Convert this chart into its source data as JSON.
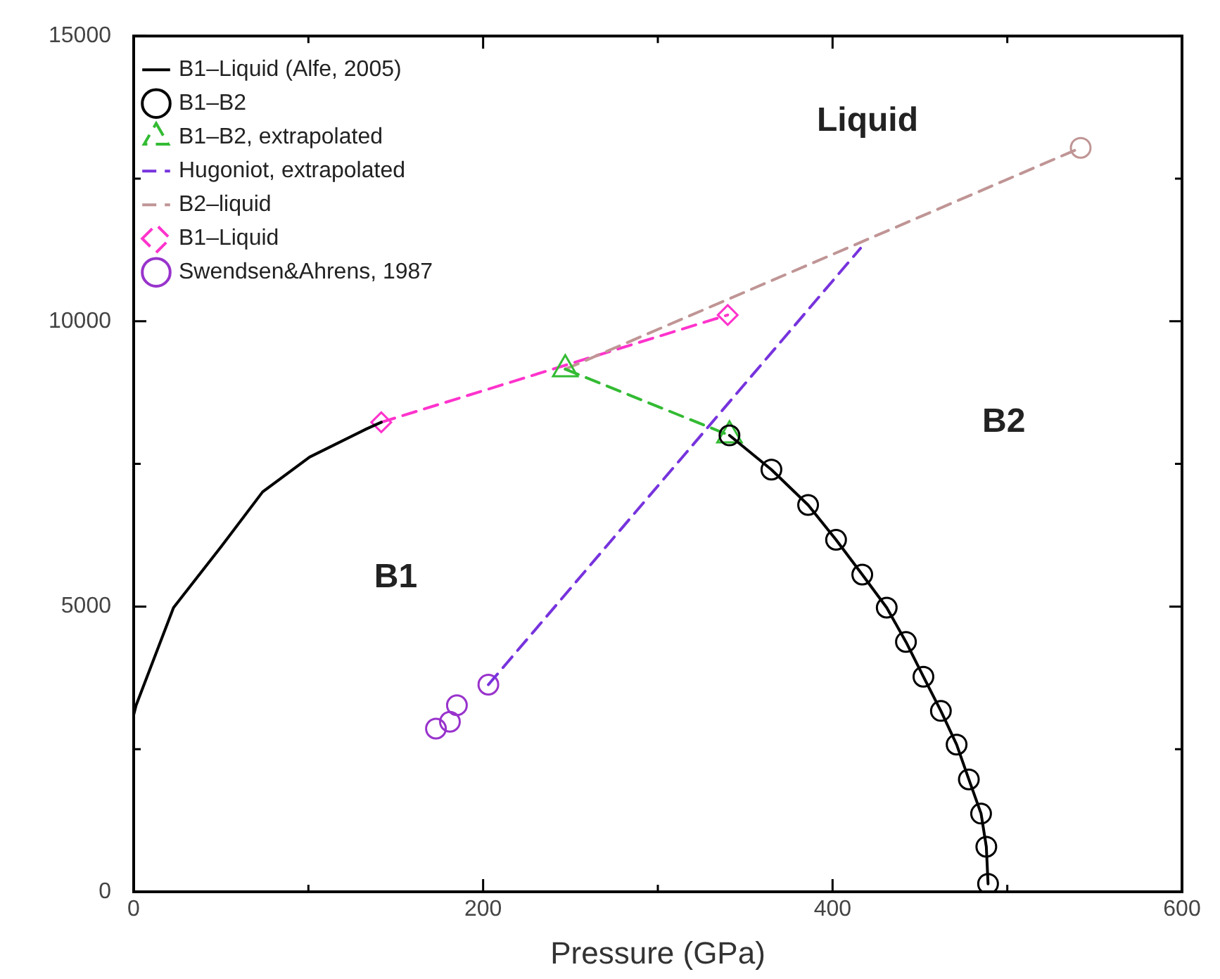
{
  "chart_data": {
    "type": "line",
    "xlabel": "Pressure (GPa)",
    "xlim": [
      0,
      600
    ],
    "xticks": [
      0,
      {
        "value": 100,
        "label": null
      },
      200,
      {
        "value": 300,
        "label": null
      },
      400,
      {
        "value": 500,
        "label": null
      },
      600
    ],
    "ylim": [
      0,
      15000
    ],
    "yticks": [
      0,
      {
        "value": 2500,
        "label": null
      },
      5000,
      {
        "value": 7500,
        "label": null
      },
      10000,
      {
        "value": 12500,
        "label": null
      },
      15000
    ],
    "grid": false,
    "legend": "top left",
    "series": [
      {
        "name": "B1–Liquid (Alfe, 2005)",
        "color": "#000000",
        "marker": "none",
        "line_style": "solid",
        "x": [
          0,
          1.4,
          22.8,
          49.6,
          73.8,
          100.7,
          133,
          141.7
        ],
        "values": [
          3100,
          3270,
          4980,
          6030,
          7010,
          7620,
          8110,
          8230
        ]
      },
      {
        "name": "B1–B2",
        "color": "#000000",
        "marker": "circle",
        "line_style": "solid",
        "x": [
          341,
          365,
          386,
          402,
          417,
          431,
          442,
          452,
          462,
          471,
          478,
          485,
          488,
          489
        ],
        "values": [
          8000,
          7400,
          6780,
          6170,
          5560,
          4980,
          4380,
          3770,
          3170,
          2580,
          1970,
          1370,
          790,
          140
        ]
      },
      {
        "name": "B1–B2, extrapolated",
        "color": "#33bb33",
        "marker": "triangle",
        "line_style": "dashed",
        "x": [
          247,
          341
        ],
        "values": [
          9160,
          8000
        ]
      },
      {
        "name": "Hugoniot, extrapolated",
        "color": "#7733dd",
        "marker": "none",
        "line_style": "dashed",
        "x": [
          203,
          416
        ],
        "values": [
          3630,
          11280
        ]
      },
      {
        "name": "B2–liquid",
        "color": "#c09595",
        "marker": "none",
        "line_style": "dashed",
        "x": [
          247,
          542
        ],
        "values": [
          9160,
          13040
        ]
      },
      {
        "color": "#c09595",
        "type": "scatter",
        "marker": "circle",
        "x": [
          542
        ],
        "values": [
          13040
        ]
      },
      {
        "name": "B1–Liquid",
        "color": "#ff33cc",
        "marker": "diamond",
        "line_style": "dashed",
        "x": [
          141.7,
          340
        ],
        "values": [
          8230,
          10110
        ]
      },
      {
        "name": "Swendsen&Ahrens, 1987",
        "color": "#9933cc",
        "type": "scatter",
        "marker": "circle",
        "x": [
          173,
          181,
          185,
          203
        ],
        "values": [
          2860,
          2980,
          3270,
          3630
        ]
      }
    ],
    "annotations": [
      "Liquid",
      "B1",
      "B2"
    ]
  }
}
